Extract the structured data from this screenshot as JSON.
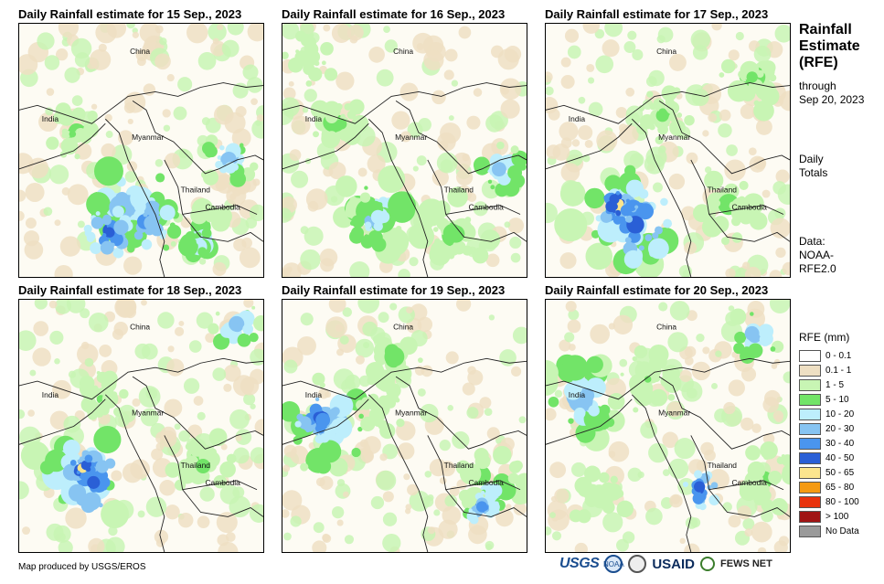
{
  "panels": [
    {
      "title": "Daily Rainfall estimate for 15 Sep., 2023",
      "labels": {
        "china": "China",
        "india": "India",
        "myanmar": "Myanmar",
        "thailand": "Thailand",
        "cambodia": "Cambodia"
      }
    },
    {
      "title": "Daily Rainfall estimate for 16 Sep., 2023",
      "labels": {
        "china": "China",
        "india": "India",
        "myanmar": "Myanmar",
        "thailand": "Thailand",
        "cambodia": "Cambodia"
      }
    },
    {
      "title": "Daily Rainfall estimate for 17 Sep., 2023",
      "labels": {
        "china": "China",
        "india": "India",
        "myanmar": "Myanmar",
        "thailand": "Thailand",
        "cambodia": "Cambodia"
      }
    },
    {
      "title": "Daily Rainfall estimate for 18 Sep., 2023",
      "labels": {
        "china": "China",
        "india": "India",
        "myanmar": "Myanmar",
        "thailand": "Thailand",
        "cambodia": "Cambodia"
      }
    },
    {
      "title": "Daily Rainfall estimate for 19 Sep., 2023",
      "labels": {
        "china": "China",
        "india": "India",
        "myanmar": "Myanmar",
        "thailand": "Thailand",
        "cambodia": "Cambodia"
      }
    },
    {
      "title": "Daily Rainfall estimate for 20 Sep., 2023",
      "labels": {
        "china": "China",
        "india": "India",
        "myanmar": "Myanmar",
        "thailand": "Thailand",
        "cambodia": "Cambodia"
      }
    }
  ],
  "sidebar": {
    "title_line1": "Rainfall",
    "title_line2": "Estimate",
    "title_line3": "(RFE)",
    "through": "through",
    "date": "Sep 20, 2023",
    "daily": "Daily",
    "totals": "Totals",
    "data_label": "Data:",
    "data_source1": "NOAA-",
    "data_source2": "RFE2.0"
  },
  "legend": {
    "title": "RFE (mm)",
    "items": [
      {
        "label": "0 - 0.1",
        "color": "#ffffff"
      },
      {
        "label": "0.1 - 1",
        "color": "#eedfc3"
      },
      {
        "label": "1 - 5",
        "color": "#c8f5b4"
      },
      {
        "label": "5 - 10",
        "color": "#72e468"
      },
      {
        "label": "10 - 20",
        "color": "#bdeefc"
      },
      {
        "label": "20 - 30",
        "color": "#87c4f2"
      },
      {
        "label": "30 - 40",
        "color": "#4a95ee"
      },
      {
        "label": "40 - 50",
        "color": "#2a5fd6"
      },
      {
        "label": "50 - 65",
        "color": "#fbe58e"
      },
      {
        "label": "65 - 80",
        "color": "#f59a12"
      },
      {
        "label": "80 - 100",
        "color": "#e8320c"
      },
      {
        "label": "> 100",
        "color": "#a01414"
      },
      {
        "label": "No Data",
        "color": "#9a9a9a"
      }
    ]
  },
  "footer": {
    "credit": "Map produced by USGS/EROS"
  },
  "logos": {
    "usgs": "USGS",
    "noaa": "NOAA",
    "usaid": "USAID",
    "fews": "FEWS NET"
  }
}
